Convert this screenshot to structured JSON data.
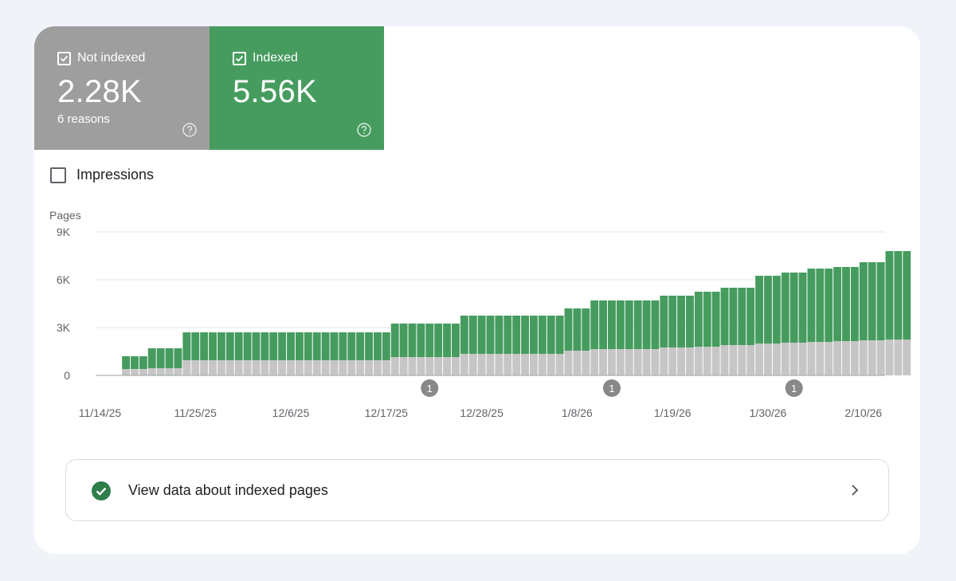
{
  "summary": {
    "not_indexed": {
      "label": "Not indexed",
      "value": "2.28K",
      "sub": "6 reasons"
    },
    "indexed": {
      "label": "Indexed",
      "value": "5.56K"
    }
  },
  "impressions": {
    "label": "Impressions",
    "checked": false
  },
  "colors": {
    "indexed": "#469c5e",
    "not_indexed": "#c6c6c6",
    "tile_gray": "#9e9e9e",
    "marker": "#888888"
  },
  "chart_data": {
    "type": "bar",
    "stacked": true,
    "ylabel": "Pages",
    "ylim": [
      0,
      9000
    ],
    "yticks": [
      "0",
      "3K",
      "6K",
      "9K"
    ],
    "ytick_values": [
      0,
      3000,
      6000,
      9000
    ],
    "xtick_labels": [
      "11/14/25",
      "11/25/25",
      "12/6/25",
      "12/17/25",
      "12/28/25",
      "1/8/26",
      "1/19/26",
      "1/30/26",
      "2/10/26"
    ],
    "xtick_day_index": [
      0,
      11,
      22,
      33,
      44,
      55,
      66,
      77,
      88
    ],
    "annotations": [
      {
        "day_index": 38,
        "label": "1"
      },
      {
        "day_index": 59,
        "label": "1"
      },
      {
        "day_index": 80,
        "label": "1"
      }
    ],
    "num_days": 91,
    "first_bar_day": 3,
    "series": [
      {
        "name": "Not indexed",
        "values": [
          400,
          400,
          400,
          450,
          450,
          450,
          450,
          950,
          950,
          950,
          950,
          950,
          950,
          950,
          950,
          950,
          950,
          950,
          950,
          950,
          950,
          950,
          950,
          950,
          950,
          950,
          950,
          950,
          950,
          950,
          950,
          1150,
          1150,
          1150,
          1150,
          1150,
          1150,
          1150,
          1150,
          1350,
          1350,
          1350,
          1350,
          1350,
          1350,
          1350,
          1350,
          1350,
          1350,
          1350,
          1350,
          1550,
          1550,
          1550,
          1650,
          1650,
          1650,
          1650,
          1650,
          1650,
          1650,
          1650,
          1750,
          1750,
          1750,
          1750,
          1800,
          1800,
          1800,
          1900,
          1900,
          1900,
          1900,
          2000,
          2000,
          2000,
          2050,
          2050,
          2050,
          2100,
          2100,
          2100,
          2150,
          2150,
          2150,
          2200,
          2200,
          2200,
          2250,
          2250,
          2250
        ]
      },
      {
        "name": "Indexed",
        "values": [
          800,
          800,
          800,
          1250,
          1250,
          1250,
          1250,
          1750,
          1750,
          1750,
          1750,
          1750,
          1750,
          1750,
          1750,
          1750,
          1750,
          1750,
          1750,
          1750,
          1750,
          1750,
          1750,
          1750,
          1750,
          1750,
          1750,
          1750,
          1750,
          1750,
          1750,
          2100,
          2100,
          2100,
          2100,
          2100,
          2100,
          2100,
          2100,
          2400,
          2400,
          2400,
          2400,
          2400,
          2400,
          2400,
          2400,
          2400,
          2400,
          2400,
          2400,
          2650,
          2650,
          2650,
          3050,
          3050,
          3050,
          3050,
          3050,
          3050,
          3050,
          3050,
          3250,
          3250,
          3250,
          3250,
          3450,
          3450,
          3450,
          3600,
          3600,
          3600,
          3600,
          4250,
          4250,
          4250,
          4400,
          4400,
          4400,
          4600,
          4600,
          4600,
          4650,
          4650,
          4650,
          4900,
          4900,
          4900,
          5550,
          5550,
          5550
        ]
      }
    ]
  },
  "view_link": {
    "label": "View data about indexed pages"
  }
}
